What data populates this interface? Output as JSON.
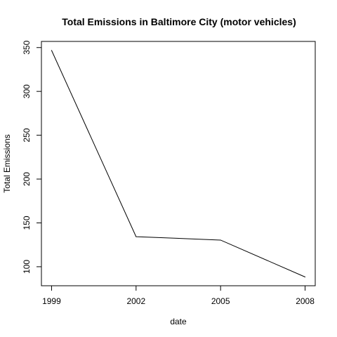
{
  "chart_data": {
    "type": "line",
    "title": "Total Emissions in Baltimore City (motor vehicles)",
    "xlabel": "date",
    "ylabel": "Total Emissions",
    "x": [
      1999,
      2002,
      2005,
      2008
    ],
    "x_tick_labels": [
      "1999",
      "2002",
      "2005",
      "2008"
    ],
    "y_ticks": [
      100,
      150,
      200,
      250,
      300,
      350
    ],
    "y_tick_labels": [
      "100",
      "150",
      "200",
      "250",
      "300",
      "350"
    ],
    "xlim": [
      1998.64,
      2008.36
    ],
    "ylim": [
      78.3,
      357.0
    ],
    "grid": false,
    "legend": "none",
    "series": [
      {
        "values": [
          346.8,
          134.3,
          130.4,
          88.3
        ],
        "color": "#000000"
      }
    ]
  }
}
